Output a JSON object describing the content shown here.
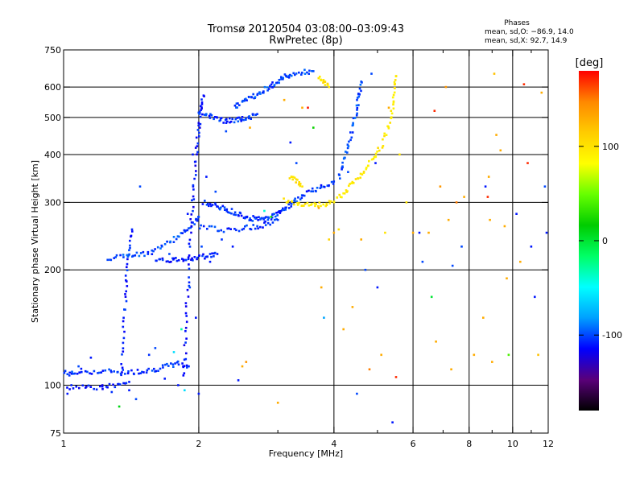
{
  "chart_data": {
    "type": "scatter",
    "title_line1": "Tromsø 20120504 03:08:00–03:09:43",
    "title_line2": "RwPretec (8p)",
    "stats": {
      "heading": "Phases",
      "line1": "mean, sd,O: −86.9, 14.0",
      "line2": "mean, sd,X:  92.7, 14.9"
    },
    "xlabel": "Frequency [MHz]",
    "ylabel": "Stationary phase Virtual Height [km]",
    "x_scale": "log",
    "y_scale": "log",
    "xlim": [
      1,
      12
    ],
    "ylim": [
      75,
      750
    ],
    "x_ticks": [
      1,
      2,
      4,
      6,
      8,
      10,
      12
    ],
    "x_tick_labels": [
      "1",
      "2",
      "4",
      "6",
      "8",
      "10",
      "12"
    ],
    "x_minor": [
      3,
      5,
      7,
      9,
      11
    ],
    "y_ticks": [
      75,
      100,
      200,
      300,
      400,
      500,
      600,
      750
    ],
    "y_tick_labels": [
      "75",
      "100",
      "200",
      "300",
      "400",
      "500",
      "600",
      "750"
    ],
    "grid": true,
    "colorbar": {
      "label": "[deg]",
      "range": [
        -180,
        180
      ],
      "ticks": [
        100,
        0,
        -100
      ],
      "tick_labels": [
        "100",
        "0",
        "-100"
      ],
      "colors": [
        "#000000",
        "#5a007a",
        "#0000ff",
        "#00a0ff",
        "#00ffff",
        "#00ff66",
        "#00cc00",
        "#66ff00",
        "#ffff00",
        "#ffcc00",
        "#ff8800",
        "#ff0000"
      ]
    },
    "traces": [
      {
        "name": "",
        "phase": -105,
        "points": [
          [
            1.0,
            108
          ],
          [
            1.05,
            107
          ],
          [
            1.1,
            109
          ],
          [
            1.2,
            108
          ],
          [
            1.3,
            109
          ],
          [
            1.4,
            108
          ],
          [
            1.5,
            109
          ],
          [
            1.6,
            110
          ],
          [
            1.7,
            112
          ],
          [
            1.8,
            114
          ],
          [
            1.9,
            112
          ]
        ]
      },
      {
        "name": "",
        "phase": -110,
        "points": [
          [
            1.0,
            98
          ],
          [
            1.1,
            100
          ],
          [
            1.2,
            98
          ],
          [
            1.3,
            100
          ],
          [
            1.4,
            102
          ]
        ]
      },
      {
        "name": "",
        "phase": -108,
        "points": [
          [
            1.34,
            105
          ],
          [
            1.36,
            130
          ],
          [
            1.37,
            160
          ],
          [
            1.38,
            190
          ],
          [
            1.4,
            225
          ],
          [
            1.42,
            255
          ]
        ]
      },
      {
        "name": "",
        "phase": -100,
        "points": [
          [
            1.25,
            215
          ],
          [
            1.35,
            217
          ],
          [
            1.45,
            218
          ],
          [
            1.55,
            222
          ],
          [
            1.65,
            230
          ],
          [
            1.75,
            240
          ],
          [
            1.85,
            250
          ],
          [
            1.95,
            265
          ],
          [
            2.0,
            275
          ]
        ]
      },
      {
        "name": "",
        "phase": -110,
        "points": [
          [
            1.6,
            210
          ],
          [
            1.7,
            212
          ],
          [
            1.8,
            213
          ],
          [
            1.9,
            214
          ],
          [
            2.0,
            216
          ],
          [
            2.1,
            218
          ],
          [
            2.2,
            220
          ]
        ]
      },
      {
        "name": "",
        "phase": -112,
        "points": [
          [
            1.85,
            105
          ],
          [
            1.87,
            130
          ],
          [
            1.88,
            160
          ],
          [
            1.9,
            200
          ],
          [
            1.92,
            250
          ],
          [
            1.94,
            300
          ],
          [
            1.96,
            350
          ],
          [
            1.98,
            420
          ],
          [
            2.0,
            470
          ],
          [
            2.02,
            520
          ],
          [
            2.05,
            570
          ]
        ]
      },
      {
        "name": "",
        "phase": -105,
        "points": [
          [
            2.0,
            520
          ],
          [
            2.1,
            505
          ],
          [
            2.2,
            495
          ],
          [
            2.3,
            490
          ],
          [
            2.4,
            490
          ],
          [
            2.5,
            495
          ],
          [
            2.6,
            500
          ],
          [
            2.7,
            510
          ]
        ]
      },
      {
        "name": "",
        "phase": -100,
        "points": [
          [
            2.4,
            530
          ],
          [
            2.5,
            550
          ],
          [
            2.6,
            560
          ],
          [
            2.7,
            575
          ],
          [
            2.8,
            590
          ],
          [
            2.9,
            605
          ],
          [
            3.0,
            620
          ],
          [
            3.1,
            635
          ],
          [
            3.2,
            645
          ],
          [
            3.4,
            655
          ],
          [
            3.6,
            660
          ]
        ]
      },
      {
        "name": "",
        "phase": -105,
        "points": [
          [
            2.05,
            300
          ],
          [
            2.15,
            295
          ],
          [
            2.25,
            290
          ],
          [
            2.35,
            285
          ],
          [
            2.45,
            280
          ],
          [
            2.55,
            275
          ],
          [
            2.65,
            272
          ],
          [
            2.75,
            270
          ],
          [
            2.85,
            272
          ],
          [
            2.95,
            278
          ],
          [
            3.05,
            285
          ],
          [
            3.15,
            292
          ],
          [
            3.25,
            300
          ],
          [
            3.4,
            312
          ],
          [
            3.6,
            322
          ],
          [
            3.8,
            332
          ],
          [
            4.0,
            340
          ]
        ]
      },
      {
        "name": "",
        "phase": -105,
        "points": [
          [
            2.0,
            260
          ],
          [
            2.2,
            255
          ],
          [
            2.4,
            255
          ],
          [
            2.6,
            258
          ],
          [
            2.8,
            262
          ],
          [
            3.0,
            270
          ]
        ]
      },
      {
        "name": "",
        "phase": 95,
        "points": [
          [
            3.1,
            305
          ],
          [
            3.3,
            300
          ],
          [
            3.5,
            295
          ],
          [
            3.7,
            295
          ],
          [
            3.9,
            300
          ],
          [
            4.1,
            310
          ],
          [
            4.3,
            325
          ],
          [
            4.5,
            345
          ],
          [
            4.7,
            365
          ],
          [
            4.9,
            390
          ],
          [
            5.1,
            420
          ],
          [
            5.3,
            470
          ],
          [
            5.4,
            530
          ],
          [
            5.45,
            590
          ],
          [
            5.5,
            640
          ]
        ]
      },
      {
        "name": "",
        "phase": 100,
        "points": [
          [
            3.2,
            350
          ],
          [
            3.3,
            340
          ],
          [
            3.4,
            330
          ]
        ]
      },
      {
        "name": "",
        "phase": -100,
        "points": [
          [
            4.1,
            350
          ],
          [
            4.2,
            380
          ],
          [
            4.3,
            420
          ],
          [
            4.4,
            470
          ],
          [
            4.5,
            520
          ],
          [
            4.55,
            570
          ],
          [
            4.6,
            620
          ]
        ]
      },
      {
        "name": "",
        "phase": 100,
        "points": [
          [
            3.7,
            630
          ],
          [
            3.8,
            620
          ],
          [
            3.9,
            600
          ]
        ]
      }
    ],
    "scatter": [
      {
        "x": 1.02,
        "y": 95,
        "phase": -110
      },
      {
        "x": 1.08,
        "y": 112,
        "phase": -100
      },
      {
        "x": 1.15,
        "y": 118,
        "phase": -110
      },
      {
        "x": 1.22,
        "y": 100,
        "phase": -120
      },
      {
        "x": 1.28,
        "y": 96,
        "phase": -105
      },
      {
        "x": 1.33,
        "y": 88,
        "phase": 10
      },
      {
        "x": 1.4,
        "y": 97,
        "phase": -110
      },
      {
        "x": 1.45,
        "y": 92,
        "phase": -100
      },
      {
        "x": 1.48,
        "y": 330,
        "phase": -100
      },
      {
        "x": 1.55,
        "y": 120,
        "phase": -105
      },
      {
        "x": 1.6,
        "y": 125,
        "phase": -100
      },
      {
        "x": 1.68,
        "y": 104,
        "phase": -110
      },
      {
        "x": 1.72,
        "y": 220,
        "phase": -100
      },
      {
        "x": 1.76,
        "y": 122,
        "phase": -60
      },
      {
        "x": 1.8,
        "y": 100,
        "phase": -110
      },
      {
        "x": 1.83,
        "y": 140,
        "phase": -30
      },
      {
        "x": 1.86,
        "y": 97,
        "phase": -60
      },
      {
        "x": 1.89,
        "y": 280,
        "phase": -110
      },
      {
        "x": 1.91,
        "y": 180,
        "phase": -100
      },
      {
        "x": 1.94,
        "y": 400,
        "phase": -110
      },
      {
        "x": 1.97,
        "y": 150,
        "phase": -110
      },
      {
        "x": 2.0,
        "y": 95,
        "phase": -110
      },
      {
        "x": 2.03,
        "y": 230,
        "phase": -100
      },
      {
        "x": 2.08,
        "y": 350,
        "phase": -110
      },
      {
        "x": 2.12,
        "y": 210,
        "phase": -110
      },
      {
        "x": 2.18,
        "y": 320,
        "phase": -100
      },
      {
        "x": 2.25,
        "y": 240,
        "phase": -105
      },
      {
        "x": 2.3,
        "y": 460,
        "phase": -100
      },
      {
        "x": 2.38,
        "y": 230,
        "phase": -110
      },
      {
        "x": 2.45,
        "y": 103,
        "phase": -110
      },
      {
        "x": 2.5,
        "y": 112,
        "phase": 130
      },
      {
        "x": 2.55,
        "y": 115,
        "phase": 140
      },
      {
        "x": 2.6,
        "y": 470,
        "phase": 130
      },
      {
        "x": 2.7,
        "y": 260,
        "phase": -100
      },
      {
        "x": 2.8,
        "y": 285,
        "phase": -40
      },
      {
        "x": 2.9,
        "y": 275,
        "phase": 20
      },
      {
        "x": 3.0,
        "y": 90,
        "phase": 130
      },
      {
        "x": 3.1,
        "y": 555,
        "phase": 130
      },
      {
        "x": 3.2,
        "y": 430,
        "phase": -110
      },
      {
        "x": 3.3,
        "y": 380,
        "phase": -100
      },
      {
        "x": 3.4,
        "y": 530,
        "phase": 130
      },
      {
        "x": 3.5,
        "y": 530,
        "phase": 175
      },
      {
        "x": 3.6,
        "y": 470,
        "phase": 20
      },
      {
        "x": 3.7,
        "y": 290,
        "phase": 130
      },
      {
        "x": 3.75,
        "y": 180,
        "phase": 130
      },
      {
        "x": 3.8,
        "y": 150,
        "phase": -80
      },
      {
        "x": 3.9,
        "y": 240,
        "phase": 110
      },
      {
        "x": 4.0,
        "y": 250,
        "phase": 130
      },
      {
        "x": 4.1,
        "y": 255,
        "phase": 100
      },
      {
        "x": 4.2,
        "y": 140,
        "phase": 130
      },
      {
        "x": 4.3,
        "y": 360,
        "phase": -100
      },
      {
        "x": 4.4,
        "y": 160,
        "phase": 130
      },
      {
        "x": 4.5,
        "y": 95,
        "phase": -100
      },
      {
        "x": 4.6,
        "y": 240,
        "phase": 130
      },
      {
        "x": 4.7,
        "y": 200,
        "phase": -100
      },
      {
        "x": 4.8,
        "y": 110,
        "phase": 150
      },
      {
        "x": 4.85,
        "y": 650,
        "phase": -100
      },
      {
        "x": 4.95,
        "y": 380,
        "phase": -110
      },
      {
        "x": 5.0,
        "y": 180,
        "phase": -110
      },
      {
        "x": 5.1,
        "y": 120,
        "phase": 130
      },
      {
        "x": 5.2,
        "y": 250,
        "phase": 100
      },
      {
        "x": 5.3,
        "y": 530,
        "phase": 130
      },
      {
        "x": 5.4,
        "y": 80,
        "phase": -110
      },
      {
        "x": 5.5,
        "y": 105,
        "phase": 170
      },
      {
        "x": 5.6,
        "y": 400,
        "phase": 100
      },
      {
        "x": 5.8,
        "y": 300,
        "phase": 100
      },
      {
        "x": 6.0,
        "y": 250,
        "phase": 130
      },
      {
        "x": 6.2,
        "y": 250,
        "phase": -110
      },
      {
        "x": 6.3,
        "y": 210,
        "phase": -100
      },
      {
        "x": 6.5,
        "y": 250,
        "phase": 130
      },
      {
        "x": 6.6,
        "y": 170,
        "phase": 0
      },
      {
        "x": 6.7,
        "y": 520,
        "phase": 170
      },
      {
        "x": 6.75,
        "y": 130,
        "phase": 130
      },
      {
        "x": 6.9,
        "y": 330,
        "phase": 140
      },
      {
        "x": 7.1,
        "y": 600,
        "phase": 140
      },
      {
        "x": 7.2,
        "y": 270,
        "phase": 130
      },
      {
        "x": 7.3,
        "y": 110,
        "phase": 130
      },
      {
        "x": 7.35,
        "y": 205,
        "phase": -100
      },
      {
        "x": 7.5,
        "y": 300,
        "phase": 150
      },
      {
        "x": 7.7,
        "y": 230,
        "phase": -100
      },
      {
        "x": 7.8,
        "y": 310,
        "phase": 130
      },
      {
        "x": 8.2,
        "y": 120,
        "phase": 130
      },
      {
        "x": 8.6,
        "y": 150,
        "phase": 130
      },
      {
        "x": 8.7,
        "y": 330,
        "phase": -110
      },
      {
        "x": 8.8,
        "y": 310,
        "phase": 170
      },
      {
        "x": 8.85,
        "y": 350,
        "phase": 130
      },
      {
        "x": 8.9,
        "y": 270,
        "phase": 130
      },
      {
        "x": 9.0,
        "y": 115,
        "phase": 130
      },
      {
        "x": 9.1,
        "y": 650,
        "phase": 120
      },
      {
        "x": 9.2,
        "y": 450,
        "phase": 130
      },
      {
        "x": 9.4,
        "y": 410,
        "phase": 130
      },
      {
        "x": 9.6,
        "y": 260,
        "phase": 130
      },
      {
        "x": 9.7,
        "y": 190,
        "phase": 130
      },
      {
        "x": 9.8,
        "y": 120,
        "phase": 40
      },
      {
        "x": 10.2,
        "y": 280,
        "phase": -110
      },
      {
        "x": 10.4,
        "y": 210,
        "phase": 130
      },
      {
        "x": 10.6,
        "y": 610,
        "phase": 170
      },
      {
        "x": 10.8,
        "y": 380,
        "phase": 170
      },
      {
        "x": 11.0,
        "y": 230,
        "phase": -110
      },
      {
        "x": 11.2,
        "y": 170,
        "phase": -110
      },
      {
        "x": 11.4,
        "y": 120,
        "phase": 120
      },
      {
        "x": 11.6,
        "y": 580,
        "phase": 130
      },
      {
        "x": 11.8,
        "y": 330,
        "phase": -100
      },
      {
        "x": 11.9,
        "y": 250,
        "phase": -110
      }
    ]
  }
}
